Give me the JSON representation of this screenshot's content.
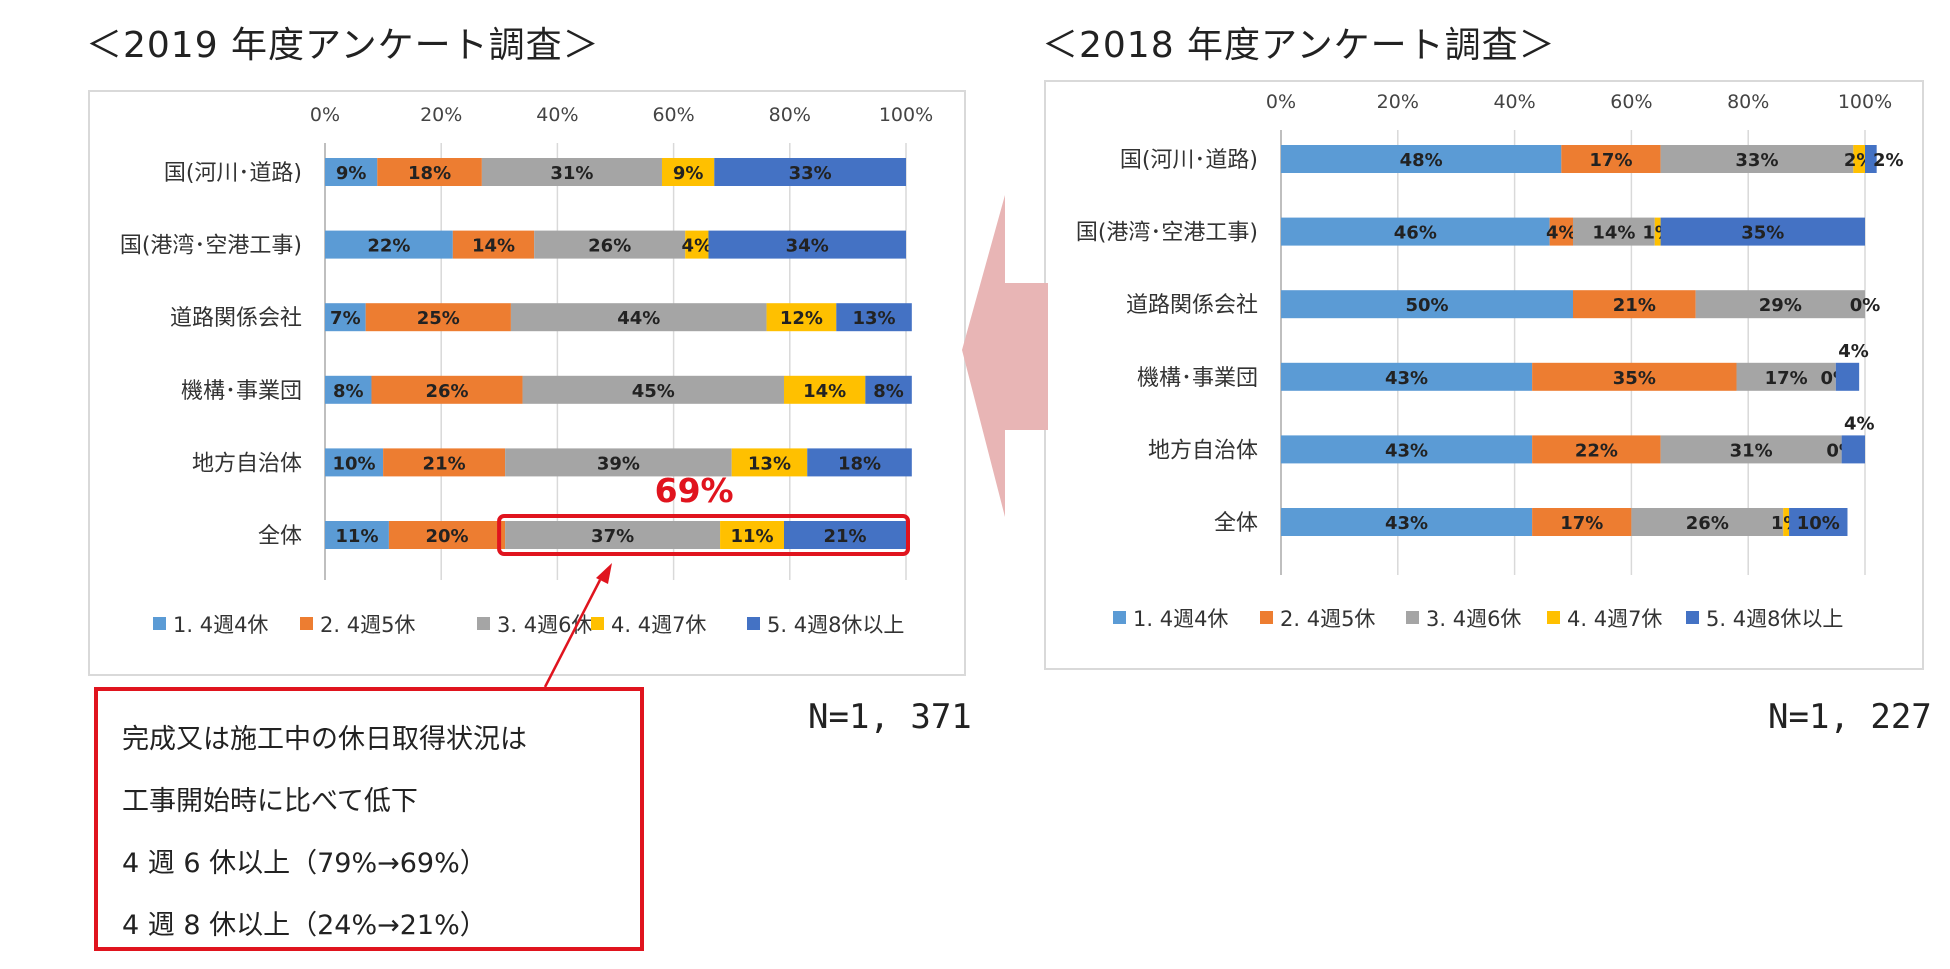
{
  "legend": [
    "1. 4週4休",
    "2. 4週5休",
    "3. 4週6休",
    "4. 4週7休",
    "5. 4週8休以上"
  ],
  "colors": {
    "s1": "#5b9bd5",
    "s2": "#ed7d31",
    "s3": "#a5a5a5",
    "s4": "#ffc000",
    "s5": "#4472c4",
    "highlight": "#e0141e",
    "arrow": "#e8b5b5"
  },
  "chart_data": [
    {
      "type": "bar",
      "title": "＜2019 年度アンケート調査＞",
      "n_label": "N=1, 371",
      "x_ticks": [
        "0%",
        "20%",
        "40%",
        "60%",
        "80%",
        "100%"
      ],
      "xlim": [
        0,
        100
      ],
      "categories": [
        "国(河川･道路)",
        "国(港湾･空港工事)",
        "道路関係会社",
        "機構･事業団",
        "地方自治体",
        "全体"
      ],
      "series": [
        {
          "name": "1. 4週4休",
          "values": [
            9,
            22,
            7,
            8,
            10,
            11
          ]
        },
        {
          "name": "2. 4週5休",
          "values": [
            18,
            14,
            25,
            26,
            21,
            20
          ]
        },
        {
          "name": "3. 4週6休",
          "values": [
            31,
            26,
            44,
            45,
            39,
            37
          ]
        },
        {
          "name": "4. 4週7休",
          "values": [
            9,
            4,
            12,
            14,
            13,
            11
          ]
        },
        {
          "name": "5. 4週8休以上",
          "values": [
            33,
            34,
            13,
            8,
            18,
            21
          ]
        }
      ],
      "labels": [
        [
          "9%",
          "18%",
          "31%",
          "9%",
          "33%"
        ],
        [
          "22%",
          "14%",
          "26%",
          "4%",
          "34%"
        ],
        [
          "7%",
          "25%",
          "44%",
          "12%",
          "13%"
        ],
        [
          "8%",
          "26%",
          "45%",
          "14%",
          "8%"
        ],
        [
          "10%",
          "21%",
          "39%",
          "13%",
          "18%"
        ],
        [
          "11%",
          "20%",
          "37%",
          "11%",
          "21%"
        ]
      ],
      "annotation": "69%",
      "legend_position": "bottom"
    },
    {
      "type": "bar",
      "title": "＜2018 年度アンケート調査＞",
      "n_label": "N=1, 227",
      "x_ticks": [
        "0%",
        "20%",
        "40%",
        "60%",
        "80%",
        "100%"
      ],
      "xlim": [
        0,
        100
      ],
      "categories": [
        "国(河川･道路)",
        "国(港湾･空港工事)",
        "道路関係会社",
        "機構･事業団",
        "地方自治体",
        "全体"
      ],
      "series": [
        {
          "name": "1. 4週4休",
          "values": [
            48,
            46,
            50,
            43,
            43,
            43
          ]
        },
        {
          "name": "2. 4週5休",
          "values": [
            17,
            4,
            21,
            35,
            22,
            17
          ]
        },
        {
          "name": "3. 4週6休",
          "values": [
            33,
            14,
            29,
            17,
            31,
            26
          ]
        },
        {
          "name": "4. 4週7休",
          "values": [
            2,
            1,
            0,
            0,
            0,
            1
          ]
        },
        {
          "name": "5. 4週8休以上",
          "values": [
            2,
            35,
            0,
            4,
            4,
            10
          ]
        }
      ],
      "labels": [
        [
          "48%",
          "17%",
          "33%",
          "2%",
          "2%"
        ],
        [
          "46%",
          "4%",
          "14%",
          "1%",
          "35%"
        ],
        [
          "50%",
          "21%",
          "29%",
          "0%",
          ""
        ],
        [
          "43%",
          "35%",
          "17%",
          "0%",
          "4%"
        ],
        [
          "43%",
          "22%",
          "31%",
          "0%",
          "4%"
        ],
        [
          "43%",
          "17%",
          "26%",
          "1%",
          "10%"
        ]
      ],
      "legend_position": "bottom"
    }
  ],
  "note": {
    "lines": [
      "完成又は施工中の休日取得状況は",
      "工事開始時に比べて低下",
      "4 週 6 休以上（79%→69%）",
      "4 週 8 休以上（24%→21%）"
    ]
  }
}
